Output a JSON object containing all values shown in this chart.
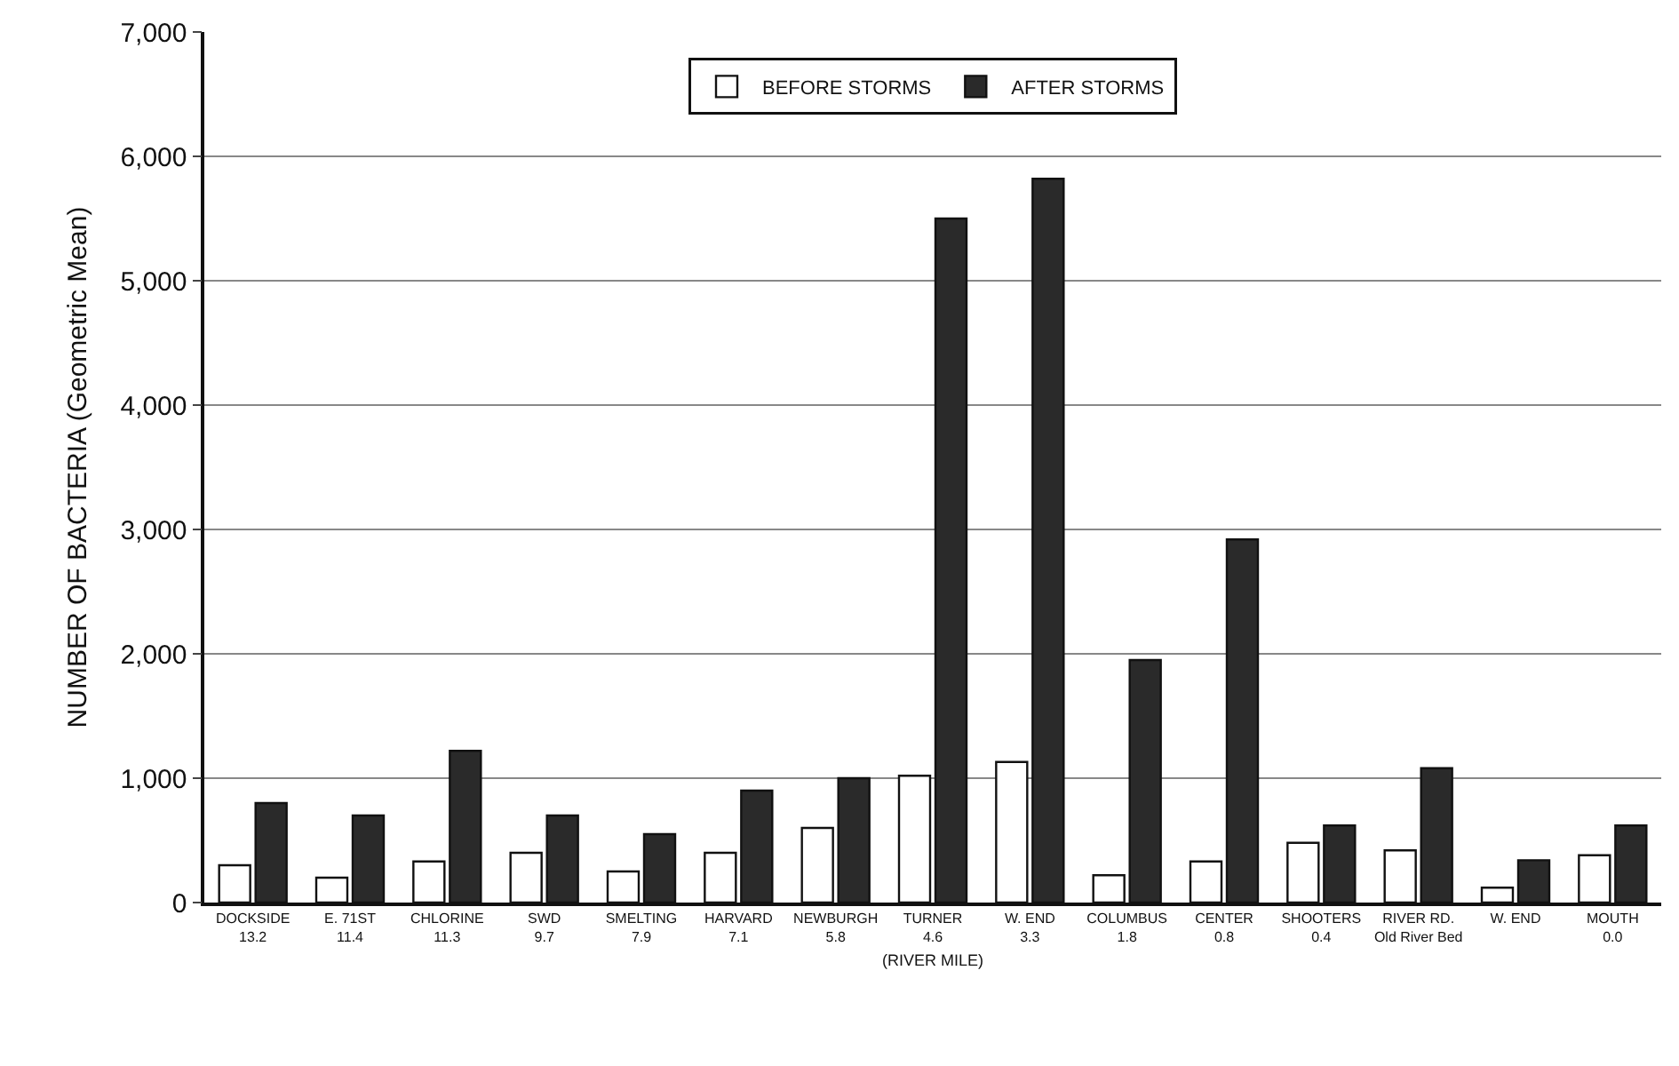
{
  "chart_data": {
    "type": "bar",
    "xlabel": "(RIVER MILE)",
    "ylabel": "NUMBER OF BACTERIA (Geometric Mean)",
    "categories": [
      "DOCKSIDE\n13.2",
      "E. 71ST\n11.4",
      "CHLORINE\n11.3",
      "SWD\n9.7",
      "SMELTING\n7.9",
      "HARVARD\n7.1",
      "NEWBURGH\n5.8",
      "TURNER\n4.6",
      "W. END\n3.3",
      "COLUMBUS\n1.8",
      "CENTER\n0.8",
      "SHOOTERS\n0.4",
      "RIVER RD.\nOld River Bed",
      "W. END\n ",
      "MOUTH\n0.0"
    ],
    "series": [
      {
        "name": "BEFORE STORMS",
        "color": "#ffffff",
        "values": [
          300,
          200,
          330,
          400,
          250,
          400,
          600,
          1020,
          1130,
          220,
          330,
          480,
          420,
          120,
          380
        ]
      },
      {
        "name": "AFTER STORMS",
        "color": "#2a2a2a",
        "values": [
          800,
          700,
          1220,
          700,
          550,
          900,
          1000,
          5500,
          5820,
          1950,
          2920,
          620,
          1080,
          340,
          620
        ]
      }
    ],
    "ylim": [
      0,
      7000
    ],
    "yticks": [
      {
        "value": 0,
        "label": "0"
      },
      {
        "value": 1000,
        "label": "1,000"
      },
      {
        "value": 2000,
        "label": "2,000"
      },
      {
        "value": 3000,
        "label": "3,000"
      },
      {
        "value": 4000,
        "label": "4,000"
      },
      {
        "value": 5000,
        "label": "5,000"
      },
      {
        "value": 6000,
        "label": "6,000"
      },
      {
        "value": 7000,
        "label": "7,000"
      }
    ],
    "grid": "y",
    "legend": "top"
  }
}
